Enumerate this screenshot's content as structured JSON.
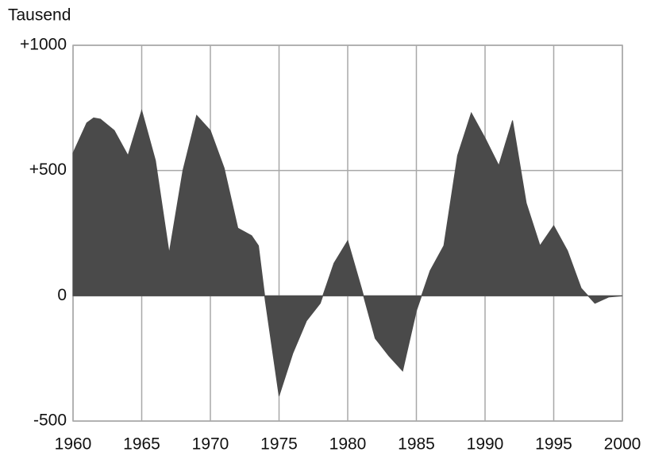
{
  "chart_data": {
    "type": "area",
    "ylabel": "Tausend",
    "x": [
      1960,
      1961,
      1961.5,
      1962,
      1963,
      1964,
      1965,
      1966,
      1967,
      1968,
      1969,
      1970,
      1971,
      1972,
      1973,
      1973.5,
      1974,
      1975,
      1976,
      1977,
      1978,
      1979,
      1980,
      1981,
      1982,
      1983,
      1984,
      1985,
      1986,
      1987,
      1988,
      1989,
      1990,
      1991,
      1992,
      1993,
      1994,
      1995,
      1996,
      1997,
      1998,
      1999,
      2000
    ],
    "values": [
      570,
      690,
      710,
      705,
      660,
      560,
      740,
      540,
      170,
      500,
      720,
      660,
      510,
      270,
      240,
      200,
      -20,
      -400,
      -230,
      -100,
      -30,
      130,
      220,
      30,
      -170,
      -240,
      -300,
      -60,
      100,
      200,
      560,
      730,
      630,
      520,
      700,
      370,
      200,
      280,
      180,
      30,
      -30,
      -5,
      0
    ],
    "color": "#4a4a4a",
    "xlim": [
      1960,
      2000
    ],
    "xticks": [
      1960,
      1965,
      1970,
      1975,
      1980,
      1985,
      1990,
      1995,
      2000
    ],
    "ylim": [
      -500,
      1000
    ],
    "yticks": [
      -500,
      0,
      {
        "value": 500,
        "label": "+500"
      },
      {
        "value": 1000,
        "label": "+1000"
      }
    ],
    "grid": true
  }
}
